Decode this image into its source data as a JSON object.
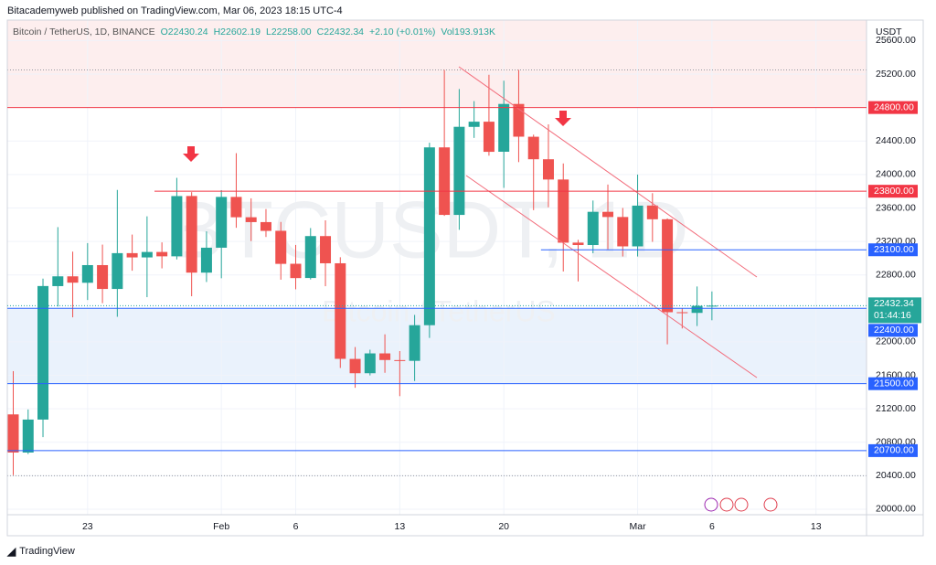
{
  "header": {
    "text": "Bitacademyweb published on TradingView.com, Mar 06, 2023 18:15 UTC-4"
  },
  "footer": {
    "brand": "TradingView"
  },
  "chart_data": {
    "type": "candlestick",
    "symbol": "Bitcoin / TetherUS, 1D, BINANCE",
    "legend": [
      "O22430.24",
      "H22602.19",
      "L22258.00",
      "C22432.34",
      "+2.10 (+0.01%)",
      "Vol193.913K"
    ],
    "watermark": "BTCUSDT, 1D",
    "watermark_subtitle": "Bitcoin / TetherUS",
    "y_axis_label": "USDT",
    "up_color": "#26a69a",
    "down_color": "#ef5350",
    "open": [
      21133,
      20677,
      21071,
      22666,
      22783,
      22706,
      22917,
      22632,
      23060,
      23009,
      23074,
      23022,
      23743,
      22827,
      23125,
      23732,
      23489,
      23431,
      23327,
      22933,
      22763,
      23264,
      22939,
      21796,
      21625,
      21862,
      21782,
      21773,
      22199,
      24324,
      23517,
      24569,
      24631,
      24272,
      24843,
      24451,
      24182,
      23940,
      23186,
      23157,
      23554,
      23492,
      23141,
      23629,
      23465,
      22354,
      22346,
      22430
    ],
    "high": [
      21650,
      21192,
      22755,
      23371,
      23078,
      23180,
      23162,
      23816,
      23282,
      23500,
      23189,
      23960,
      23789,
      23320,
      23812,
      24255,
      23715,
      23587,
      23433,
      23158,
      23360,
      23452,
      23011,
      21938,
      21906,
      22090,
      21890,
      22322,
      24380,
      25250,
      25021,
      24877,
      25192,
      25121,
      25250,
      24476,
      24599,
      24132,
      23219,
      23689,
      23880,
      23600,
      23999,
      23777,
      23476,
      22400,
      22662,
      22602.19
    ],
    "low": [
      20407,
      20659,
      20861,
      22422,
      22293,
      22500,
      22462,
      22300,
      22850,
      22534,
      22878,
      22985,
      22545,
      22715,
      22760,
      23363,
      23204,
      23253,
      22743,
      22628,
      22745,
      22665,
      21688,
      21451,
      21599,
      21630,
      21351,
      21532,
      22047,
      23505,
      23339,
      24437,
      24225,
      23840,
      24148,
      23574,
      23608,
      22841,
      22722,
      23059,
      23106,
      23020,
      23020,
      23195,
      21971,
      22160,
      22189,
      22258
    ],
    "close": [
      20677,
      21071,
      22667,
      22783,
      22707,
      22917,
      22632,
      23060,
      23009,
      23074,
      23022,
      23742,
      22827,
      23125,
      23732,
      23489,
      23431,
      23326,
      22932,
      22762,
      23264,
      22939,
      21797,
      21625,
      21862,
      21783,
      21773,
      22199,
      24324,
      23517,
      24570,
      24631,
      24271,
      24843,
      24452,
      24182,
      23940,
      23185,
      23157,
      23554,
      23492,
      23141,
      23628,
      23465,
      22354,
      22346,
      22430,
      22432.34
    ],
    "xlim": [
      -0.4,
      57.4
    ],
    "xticks": [
      {
        "value": 5,
        "label": "23"
      },
      {
        "value": 14,
        "label": "Feb"
      },
      {
        "value": 19,
        "label": "6"
      },
      {
        "value": 26,
        "label": "13"
      },
      {
        "value": 33,
        "label": "20"
      },
      {
        "value": 42,
        "label": "Mar"
      },
      {
        "value": 47,
        "label": "6"
      },
      {
        "value": 54,
        "label": "13"
      }
    ],
    "ylim": [
      19934,
      25845
    ],
    "yticks": [
      {
        "value": 20000,
        "label": "20000.00"
      },
      {
        "value": 20400,
        "label": "20400.00"
      },
      {
        "value": 20800,
        "label": "20800.00"
      },
      {
        "value": 21200,
        "label": "21200.00"
      },
      {
        "value": 21600,
        "label": "21600.00"
      },
      {
        "value": 22000,
        "label": "22000.00"
      },
      {
        "value": 22400,
        "label": "22400.00"
      },
      {
        "value": 22800,
        "label": "22800.00"
      },
      {
        "value": 23200,
        "label": "23200.00"
      },
      {
        "value": 23600,
        "label": "23600.00"
      },
      {
        "value": 24000,
        "label": "24000.00"
      },
      {
        "value": 24400,
        "label": "24400.00"
      },
      {
        "value": 24800,
        "label": "24800.00"
      },
      {
        "value": 25200,
        "label": "25200.00"
      },
      {
        "value": 25600,
        "label": "25600.00"
      }
    ],
    "grid": true,
    "zones": [
      {
        "low": 24800,
        "high": 25845,
        "color": "#fdeeee"
      },
      {
        "low": 21500,
        "high": 22400,
        "color": "#eaf2fc"
      }
    ],
    "dotted_levels": [
      25250,
      20400
    ],
    "levels": [
      {
        "value": 24800,
        "label": "24800.00",
        "color": "#f23645"
      },
      {
        "value": 23800,
        "label": "23800.00",
        "color": "#f23645",
        "start": 9.5
      },
      {
        "value": 23100,
        "label": "23100.00",
        "color": "#2962ff",
        "start": 35.5
      },
      {
        "value": 22400,
        "label": "22400.00",
        "color": "#2962ff"
      },
      {
        "value": 21500,
        "label": "21500.00",
        "color": "#2962ff"
      },
      {
        "value": 20700,
        "label": "20700.00",
        "color": "#2962ff"
      }
    ],
    "last": {
      "value": 22432.34,
      "label": "22432.34",
      "countdown": "01:44:16",
      "color": "#26a69a"
    }
  }
}
